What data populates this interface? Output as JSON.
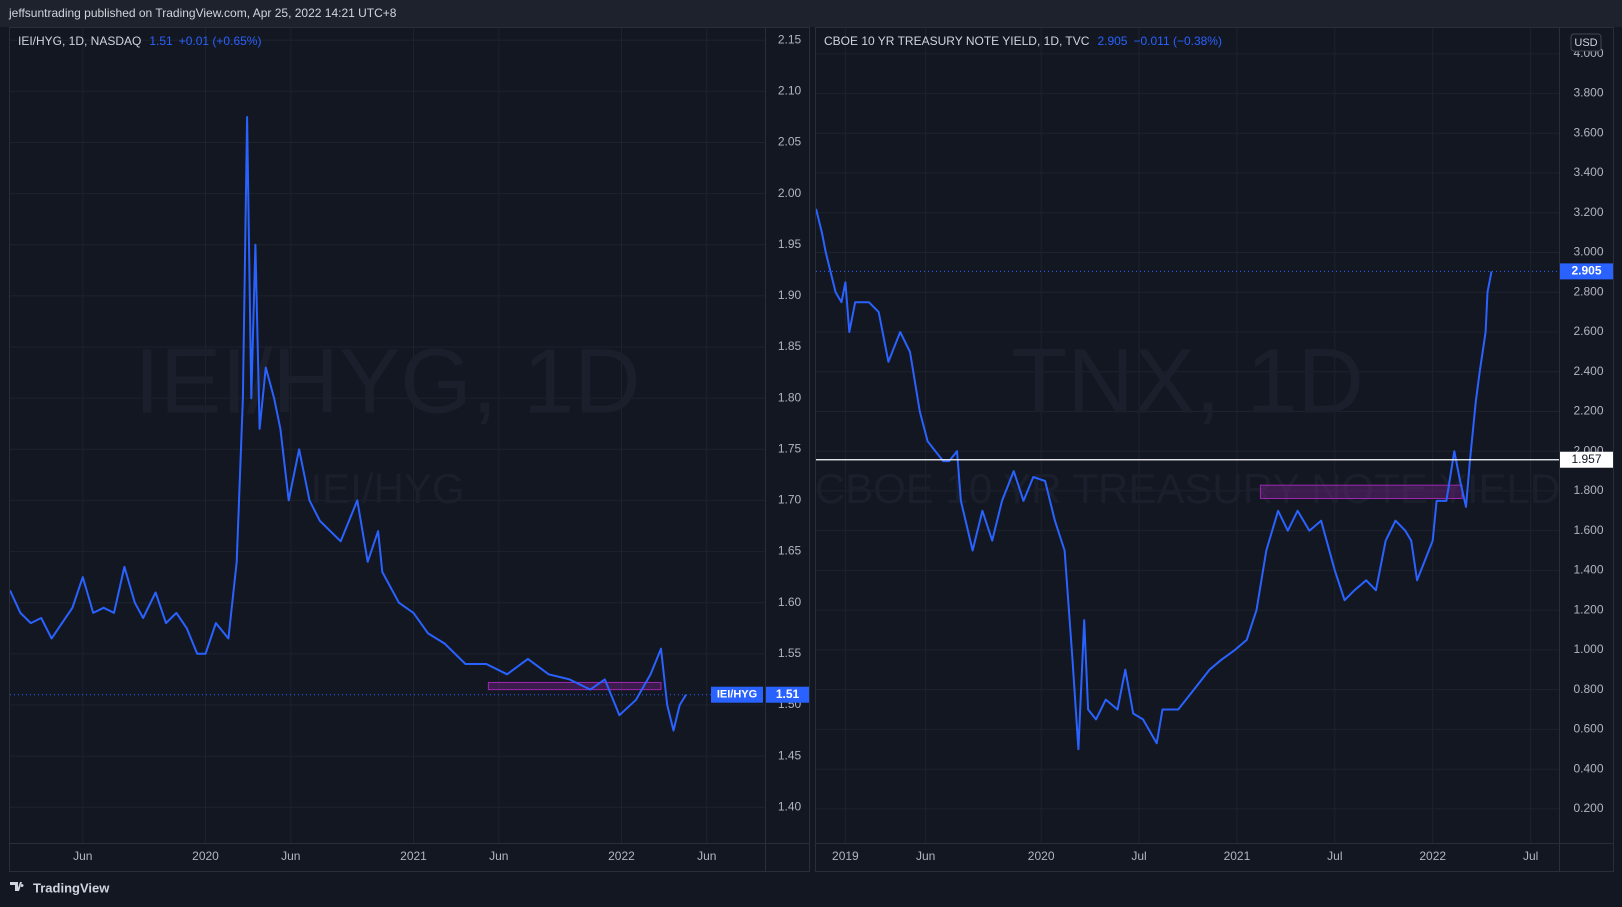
{
  "header": {
    "text": "jeffsuntrading published on TradingView.com, Apr 25, 2022 14:21 UTC+8"
  },
  "footer": {
    "brand": "TradingView"
  },
  "chart_data": [
    {
      "type": "line",
      "legend_title": "IEI/HYG, 1D, NASDAQ",
      "change": "+0.01 (+0.65%)",
      "watermark": "IEI/HYG, 1D",
      "watermark_sub": "IEI/HYG",
      "last_price": 1.51,
      "price_tag": "IEI/HYG",
      "x": [
        2019.06,
        2019.11,
        2019.16,
        2019.21,
        2019.26,
        2019.31,
        2019.36,
        2019.41,
        2019.46,
        2019.51,
        2019.56,
        2019.61,
        2019.66,
        2019.7,
        2019.76,
        2019.81,
        2019.86,
        2019.91,
        2019.96,
        2020.0,
        2020.05,
        2020.11,
        2020.15,
        2020.18,
        2020.2,
        2020.22,
        2020.24,
        2020.26,
        2020.29,
        2020.33,
        2020.36,
        2020.4,
        2020.45,
        2020.5,
        2020.55,
        2020.6,
        2020.65,
        2020.73,
        2020.78,
        2020.83,
        2020.85,
        2020.93,
        2021.0,
        2021.07,
        2021.15,
        2021.25,
        2021.35,
        2021.45,
        2021.55,
        2021.65,
        2021.75,
        2021.85,
        2021.92,
        2021.99,
        2022.07,
        2022.14,
        2022.19,
        2022.22,
        2022.25,
        2022.28,
        2022.31
      ],
      "series": [
        {
          "name": "IEI/HYG",
          "color": "#2962ff",
          "values": [
            1.612,
            1.59,
            1.58,
            1.585,
            1.565,
            1.58,
            1.595,
            1.625,
            1.59,
            1.595,
            1.59,
            1.635,
            1.6,
            1.585,
            1.61,
            1.58,
            1.59,
            1.575,
            1.55,
            1.55,
            1.58,
            1.565,
            1.64,
            1.8,
            2.075,
            1.8,
            1.95,
            1.77,
            1.83,
            1.8,
            1.77,
            1.7,
            1.75,
            1.7,
            1.68,
            1.67,
            1.66,
            1.7,
            1.64,
            1.67,
            1.63,
            1.6,
            1.59,
            1.57,
            1.56,
            1.54,
            1.54,
            1.53,
            1.545,
            1.53,
            1.525,
            1.515,
            1.525,
            1.49,
            1.505,
            1.53,
            1.555,
            1.5,
            1.475,
            1.5,
            1.51
          ]
        }
      ],
      "zones": [
        {
          "x": [
            2021.36,
            2022.19
          ],
          "y": [
            1.515,
            1.522
          ],
          "color": "#9c27b0"
        }
      ],
      "xlim": [
        2019.06,
        2022.69
      ],
      "xticks": [
        {
          "value": 2019.41,
          "label": "Jun"
        },
        {
          "value": 2020,
          "label": "2020"
        },
        {
          "value": 2020.41,
          "label": "Jun"
        },
        {
          "value": 2021,
          "label": "2021"
        },
        {
          "value": 2021.41,
          "label": "Jun"
        },
        {
          "value": 2022,
          "label": "2022"
        },
        {
          "value": 2022.41,
          "label": "Jun"
        }
      ],
      "ylim": [
        1.365,
        2.162
      ],
      "yticks": [
        {
          "value": 1.4,
          "label": "1.40"
        },
        1.45,
        {
          "value": 1.5,
          "label": "1.50"
        },
        1.55,
        {
          "value": 1.6,
          "label": "1.60"
        },
        1.65,
        {
          "value": 1.7,
          "label": "1.70"
        },
        1.75,
        {
          "value": 1.8,
          "label": "1.80"
        },
        1.85,
        {
          "value": 1.9,
          "label": "1.90"
        },
        1.95,
        {
          "value": 2.0,
          "label": "2.00"
        },
        2.05,
        {
          "value": 2.1,
          "label": "2.10"
        },
        2.15
      ],
      "grid": true
    },
    {
      "type": "line",
      "legend_title": "CBOE 10 YR TREASURY NOTE YIELD, 1D, TVC",
      "change": "−0.011 (−0.38%)",
      "watermark": "TNX, 1D",
      "watermark_sub": "CBOE 10 YR TREASURY NOTE YIELD",
      "last_price": 2.905,
      "currency": "USD",
      "hline": 1.957,
      "x": [
        2018.85,
        2018.88,
        2018.9,
        2018.95,
        2018.98,
        2019.0,
        2019.02,
        2019.05,
        2019.12,
        2019.17,
        2019.22,
        2019.28,
        2019.33,
        2019.38,
        2019.42,
        2019.46,
        2019.5,
        2019.53,
        2019.57,
        2019.59,
        2019.65,
        2019.7,
        2019.75,
        2019.8,
        2019.86,
        2019.91,
        2019.96,
        2020.02,
        2020.07,
        2020.12,
        2020.16,
        2020.19,
        2020.22,
        2020.24,
        2020.28,
        2020.33,
        2020.39,
        2020.43,
        2020.47,
        2020.52,
        2020.59,
        2020.62,
        2020.7,
        2020.78,
        2020.86,
        2020.92,
        2020.99,
        2021.05,
        2021.1,
        2021.15,
        2021.21,
        2021.26,
        2021.31,
        2021.37,
        2021.43,
        2021.5,
        2021.55,
        2021.6,
        2021.66,
        2021.71,
        2021.76,
        2021.81,
        2021.86,
        2021.89,
        2021.92,
        2021.96,
        2022.0,
        2022.02,
        2022.07,
        2022.11,
        2022.14,
        2022.17,
        2022.19,
        2022.22,
        2022.24,
        2022.27,
        2022.28,
        2022.3
      ],
      "series": [
        {
          "name": "TNX",
          "color": "#2962ff",
          "values": [
            3.22,
            3.1,
            3.0,
            2.8,
            2.75,
            2.85,
            2.6,
            2.75,
            2.75,
            2.7,
            2.45,
            2.6,
            2.5,
            2.2,
            2.05,
            2.0,
            1.95,
            1.95,
            2.0,
            1.75,
            1.5,
            1.7,
            1.55,
            1.75,
            1.9,
            1.75,
            1.87,
            1.85,
            1.65,
            1.5,
            0.95,
            0.5,
            1.15,
            0.7,
            0.65,
            0.75,
            0.7,
            0.9,
            0.68,
            0.65,
            0.53,
            0.7,
            0.7,
            0.8,
            0.9,
            0.95,
            1.0,
            1.05,
            1.2,
            1.5,
            1.7,
            1.6,
            1.7,
            1.6,
            1.65,
            1.4,
            1.25,
            1.3,
            1.35,
            1.3,
            1.55,
            1.65,
            1.6,
            1.55,
            1.35,
            1.45,
            1.55,
            1.75,
            1.75,
            2.0,
            1.85,
            1.72,
            1.95,
            2.25,
            2.4,
            2.6,
            2.8,
            2.905
          ]
        }
      ],
      "zones": [
        {
          "x": [
            2021.12,
            2022.15
          ],
          "y": [
            1.762,
            1.829
          ],
          "color": "#9c27b0"
        }
      ],
      "xlim": [
        2018.85,
        2022.645
      ],
      "xticks": [
        {
          "value": 2019,
          "label": "2019"
        },
        {
          "value": 2019.41,
          "label": "Jun"
        },
        {
          "value": 2020,
          "label": "2020"
        },
        {
          "value": 2020.5,
          "label": "Jul"
        },
        {
          "value": 2021,
          "label": "2021"
        },
        {
          "value": 2021.5,
          "label": "Jul"
        },
        {
          "value": 2022,
          "label": "2022"
        },
        {
          "value": 2022.5,
          "label": "Jul"
        }
      ],
      "ylim": [
        0.028,
        4.13
      ],
      "yticks": [
        {
          "value": 0.2,
          "label": "0.200"
        },
        {
          "value": 0.4,
          "label": "0.400"
        },
        {
          "value": 0.6,
          "label": "0.600"
        },
        {
          "value": 0.8,
          "label": "0.800"
        },
        {
          "value": 1.0,
          "label": "1.000"
        },
        {
          "value": 1.2,
          "label": "1.200"
        },
        {
          "value": 1.4,
          "label": "1.400"
        },
        {
          "value": 1.6,
          "label": "1.600"
        },
        {
          "value": 1.8,
          "label": "1.800"
        },
        {
          "value": 2.0,
          "label": "2.000"
        },
        {
          "value": 2.2,
          "label": "2.200"
        },
        {
          "value": 2.4,
          "label": "2.400"
        },
        {
          "value": 2.6,
          "label": "2.600"
        },
        {
          "value": 2.8,
          "label": "2.800"
        },
        {
          "value": 3.0,
          "label": "3.000"
        },
        {
          "value": 3.2,
          "label": "3.200"
        },
        {
          "value": 3.4,
          "label": "3.400"
        },
        {
          "value": 3.6,
          "label": "3.600"
        },
        {
          "value": 3.8,
          "label": "3.800"
        },
        {
          "value": 4.0,
          "label": "4.000"
        }
      ],
      "grid": true
    }
  ]
}
